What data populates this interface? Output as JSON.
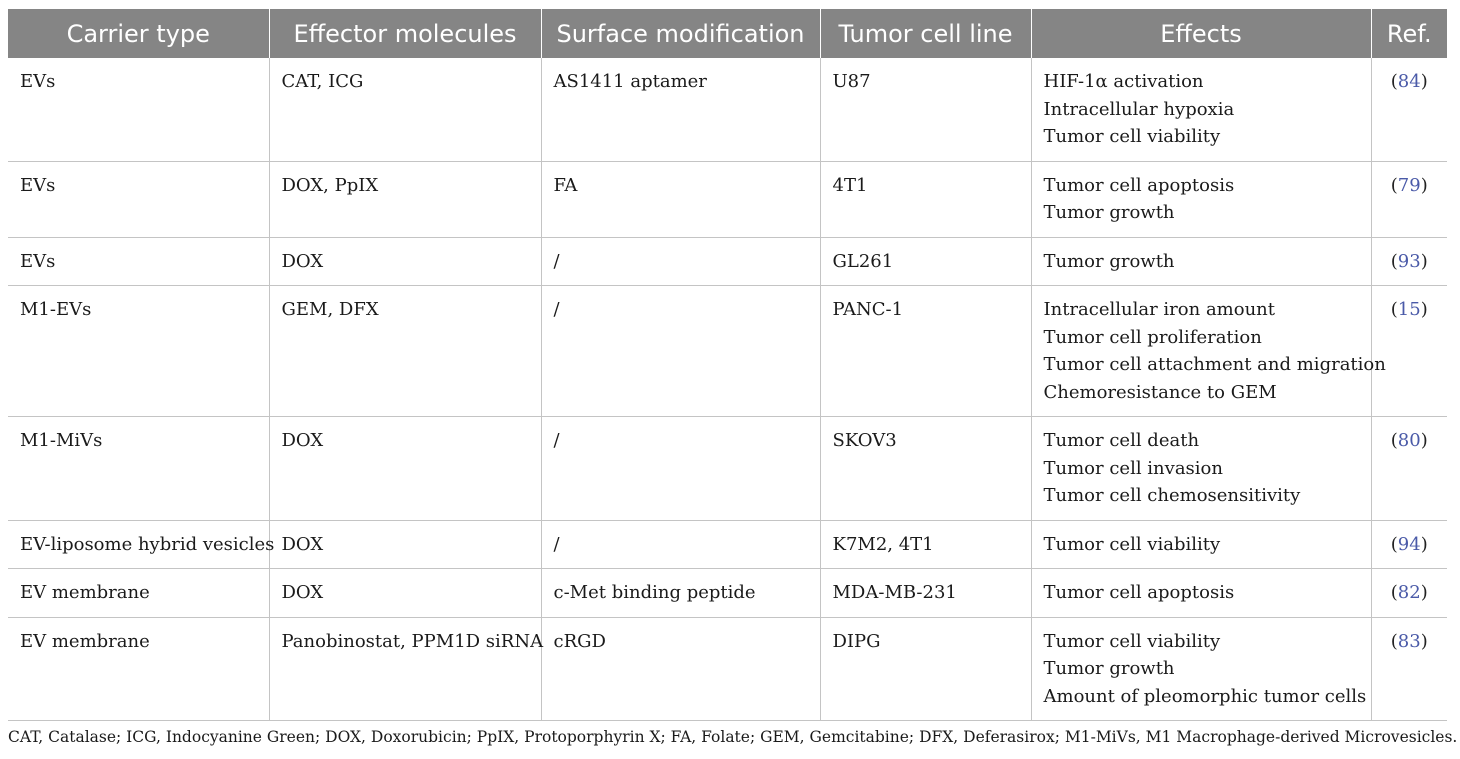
{
  "headers": [
    "Carrier type",
    "Effector molecules",
    "Surface modification",
    "Tumor cell line",
    "Effects",
    "Ref."
  ],
  "rows": [
    {
      "carrier": "EVs",
      "effector": "CAT, ICG",
      "surface": "AS1411 aptamer",
      "cell_line": "U87",
      "effects": [
        "HIF-1α activation",
        "Intracellular hypoxia",
        "Tumor cell viability"
      ],
      "ref": "84"
    },
    {
      "carrier": "EVs",
      "effector": "DOX, PpIX",
      "surface": "FA",
      "cell_line": "4T1",
      "effects": [
        "Tumor cell apoptosis",
        "Tumor growth"
      ],
      "ref": "79"
    },
    {
      "carrier": "EVs",
      "effector": "DOX",
      "surface": "/",
      "cell_line": "GL261",
      "effects": [
        "Tumor growth"
      ],
      "ref": "93"
    },
    {
      "carrier": "M1-EVs",
      "effector": "GEM, DFX",
      "surface": "/",
      "cell_line": "PANC-1",
      "effects": [
        "Intracellular iron amount",
        "Tumor cell proliferation",
        "Tumor cell attachment and migration",
        "Chemoresistance to GEM"
      ],
      "ref": "15"
    },
    {
      "carrier": "M1-MiVs",
      "effector": "DOX",
      "surface": "/",
      "cell_line": "SKOV3",
      "effects": [
        "Tumor cell death",
        "Tumor cell invasion",
        "Tumor cell chemosensitivity"
      ],
      "ref": "80"
    },
    {
      "carrier": "EV-liposome hybrid vesicles",
      "effector": "DOX",
      "surface": "/",
      "cell_line": "K7M2, 4T1",
      "effects": [
        "Tumor cell viability"
      ],
      "ref": "94"
    },
    {
      "carrier": "EV membrane",
      "effector": "DOX",
      "surface": "c-Met binding peptide",
      "cell_line": "MDA-MB-231",
      "effects": [
        "Tumor cell apoptosis"
      ],
      "ref": "82"
    },
    {
      "carrier": "EV membrane",
      "effector": "Panobinostat, PPM1D siRNA",
      "surface": "cRGD",
      "cell_line": "DIPG",
      "effects": [
        "Tumor cell viability",
        "Tumor growth",
        "Amount of pleomorphic tumor cells"
      ],
      "ref": "83"
    }
  ],
  "footnote": "CAT, Catalase; ICG, Indocyanine Green; DOX, Doxorubicin; PpIX, Protoporphyrin X; FA, Folate; GEM, Gemcitabine; DFX, Deferasirox; M1-MiVs, M1 Macrophage-derived Microvesicles.",
  "colors": {
    "header_bg": "#858585",
    "header_text": "#ffffff",
    "ref_link": "#4a5aa8",
    "rule": "#c4c4c4"
  }
}
